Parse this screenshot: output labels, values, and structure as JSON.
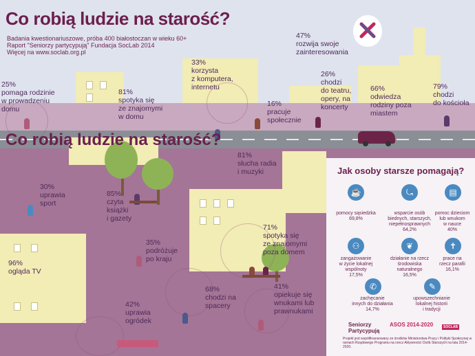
{
  "title": "Co robią ludzie na starość?",
  "subtitle": {
    "line1": "Badania kwestionariuszowe, próba 400 białostoczan w wieku 60+",
    "line2": "Raport \"Seniorzy partycypują\" Fundacja SocLab 2014",
    "line3": "Więcej na www.soclab.org.pl"
  },
  "stats": {
    "s1": {
      "pct": "25%",
      "text": "pomaga rodzinie\nw prowadzeniu\ndomu"
    },
    "s2": {
      "pct": "81%",
      "text": "spotyka się\nze znajomymi\nw domu"
    },
    "s3": {
      "pct": "33%",
      "text": "korzysta\nz komputera,\ninternetu"
    },
    "s4": {
      "pct": "16%",
      "text": "pracuje\nspołecznie"
    },
    "s5": {
      "pct": "26%",
      "text": "chodzi\ndo teatru,\nopery, na\nkoncerty"
    },
    "s6": {
      "pct": "47%",
      "text": "rozwija swoje\nzainteresowania"
    },
    "s7": {
      "pct": "66%",
      "text": "odwiedza\nrodziny poza\nmiastem"
    },
    "s8": {
      "pct": "79%",
      "text": "chodzi\ndo kościoła"
    },
    "s9": {
      "pct": "81%",
      "text": "słucha radia\ni muzyki"
    },
    "s10": {
      "pct": "30%",
      "text": "uprawia\nsport"
    },
    "s11": {
      "pct": "85%",
      "text": "czyta\nksiążki\ni gazety"
    },
    "s12": {
      "pct": "71%",
      "text": "spotyka się\nze znajomymi\npoza domem"
    },
    "s13": {
      "pct": "35%",
      "text": "podróżuje\npo kraju"
    },
    "s14": {
      "pct": "96%",
      "text": "ogląda TV"
    },
    "s15": {
      "pct": "42%",
      "text": "uprawia\nogródek"
    },
    "s16": {
      "pct": "68%",
      "text": "chodzi na\nspacery"
    },
    "s17": {
      "pct": "41%",
      "text": "opiekuje się\nwnukami lub\nprawnukami"
    }
  },
  "section2_title": "Co robią ludzie na starość?",
  "help_panel": {
    "title": "Jak osoby starsze pomagają?",
    "items": [
      {
        "label": "pomocy sąsiedzka",
        "value": "69,8%",
        "icon": "cup-icon"
      },
      {
        "label": "wsparcie osób\nbiednych, starszych,\nniepełnosprawnych",
        "value": "64,2%",
        "icon": "cane-icon"
      },
      {
        "label": "pomoc dzieciom\nlub wnukom\nw nauce",
        "value": "40%",
        "icon": "book-icon"
      },
      {
        "label": "zangażowanie\nw życie lokalnej\nwspólnoty",
        "value": "17,5%",
        "icon": "people-icon"
      },
      {
        "label": "działanie na rzecz\nśrodowiska\nnaturalnego",
        "value": "16,5%",
        "icon": "leaf-icon"
      },
      {
        "label": "prace na\nrzecz parafii",
        "value": "16,1%",
        "icon": "church-icon"
      },
      {
        "label": "zachęcanie\ninnych do działania",
        "value": "14,7%",
        "icon": "megaphone-icon"
      },
      {
        "label": "upowszechnianie\nlokalnej historii\ni tradycji",
        "value": "",
        "icon": "scroll-icon"
      }
    ]
  },
  "logos": {
    "seniorzy": "Seniorzy\nPartycypują",
    "asos": "ASOS 2014-2020",
    "soclab": "SOCLAB"
  },
  "footer": "Projekt jest współfinansowany ze środków Ministerstwa Pracy i Polityki Społecznej w ramach Rządowego Programu na rzecz Aktywności Osób Starszych na lata 2014-2020.",
  "colors": {
    "title": "#6b1f4e",
    "ground": "#a47596",
    "building": "#f2ecb5",
    "tree": "#8eb357",
    "accent": "#4a8ac0"
  }
}
